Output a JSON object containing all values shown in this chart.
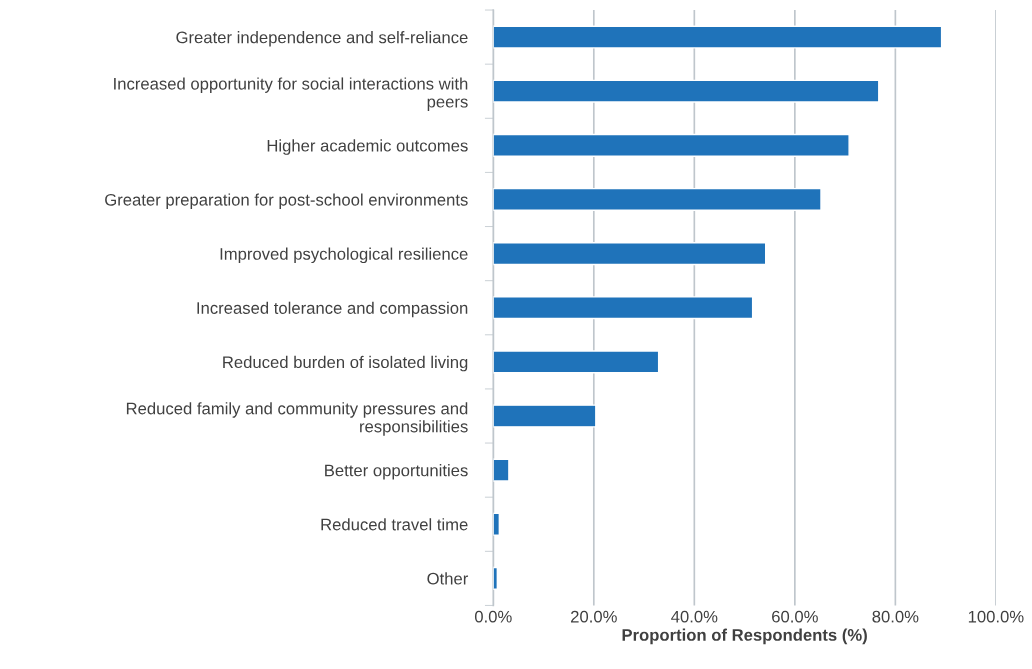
{
  "chart_data": {
    "type": "bar",
    "orientation": "horizontal",
    "xlabel": "Proportion of Respondents (%)",
    "categories": [
      "Greater independence and self-reliance",
      "Increased opportunity for social interactions with\npeers",
      "Higher academic outcomes",
      "Greater preparation for post-school environments",
      "Improved psychological resilience",
      "Increased tolerance and compassion",
      "Reduced burden of isolated living",
      "Reduced family and community pressures and\nresponsibilities",
      "Better opportunities",
      "Reduced travel time",
      "Other"
    ],
    "values": [
      89.2,
      76.7,
      70.8,
      65.2,
      54.2,
      51.6,
      32.9,
      20.4,
      3.1,
      1.2,
      0.8
    ],
    "color": "#1f73ba",
    "xlim": [
      0,
      100
    ],
    "xticks": [
      {
        "value": 0,
        "label": "0.0%"
      },
      {
        "value": 20,
        "label": "20.0%"
      },
      {
        "value": 40,
        "label": "40.0%"
      },
      {
        "value": 60,
        "label": "60.0%"
      },
      {
        "value": 80,
        "label": "80.0%"
      },
      {
        "value": 100,
        "label": "100.0%"
      }
    ],
    "grid": "x",
    "legend": false
  }
}
